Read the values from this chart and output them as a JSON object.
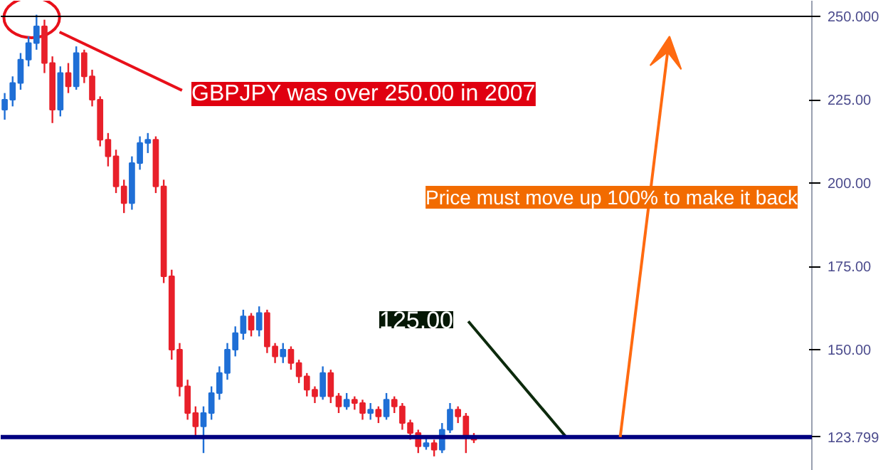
{
  "chart_data": {
    "type": "candlestick",
    "categories": [
      null,
      null,
      null,
      null,
      null,
      null,
      null,
      null,
      null,
      null,
      null,
      null,
      null,
      null,
      null,
      null,
      null,
      null,
      null,
      null,
      null,
      null,
      null,
      null,
      null,
      null,
      null,
      null,
      null,
      null,
      null,
      null,
      null,
      null,
      null,
      null,
      null,
      null,
      null,
      null,
      null,
      null,
      null,
      null,
      null,
      null,
      null,
      null,
      null,
      null,
      null,
      null,
      null,
      null,
      null,
      null,
      null,
      null,
      null,
      null,
      null,
      null,
      null,
      null,
      null,
      null,
      null,
      null,
      null,
      null,
      null,
      null,
      null,
      null,
      null,
      null,
      null,
      null,
      null,
      null,
      null,
      null,
      null,
      null,
      null,
      null,
      null,
      null,
      null,
      null,
      null,
      null,
      null,
      null,
      null,
      null,
      null,
      null,
      null,
      null,
      null,
      null
    ],
    "ohlc": [
      [
        222,
        227,
        219,
        225
      ],
      [
        225,
        232,
        223,
        230
      ],
      [
        230,
        239,
        228,
        237
      ],
      [
        237,
        244,
        235,
        242
      ],
      [
        242,
        250.5,
        240,
        247
      ],
      [
        247,
        249,
        233,
        236
      ],
      [
        236,
        238,
        218,
        222
      ],
      [
        222,
        235,
        220,
        233
      ],
      [
        233,
        236,
        227,
        229
      ],
      [
        229,
        241,
        228,
        239
      ],
      [
        239,
        240,
        230,
        232
      ],
      [
        232,
        234,
        223,
        225
      ],
      [
        225,
        226,
        211,
        213
      ],
      [
        213,
        215,
        205,
        208
      ],
      [
        208,
        210,
        197,
        199
      ],
      [
        199,
        201,
        191,
        194
      ],
      [
        194,
        208,
        192,
        206
      ],
      [
        206,
        214,
        204,
        212
      ],
      [
        212,
        215,
        209,
        213
      ],
      [
        213,
        214,
        197,
        199
      ],
      [
        199,
        201,
        170,
        172
      ],
      [
        172,
        174,
        147,
        150
      ],
      [
        150,
        152,
        136,
        139
      ],
      [
        139,
        141,
        129,
        131
      ],
      [
        131,
        133,
        124,
        127
      ],
      [
        127,
        133,
        119,
        131
      ],
      [
        131,
        139,
        129,
        137
      ],
      [
        137,
        145,
        135,
        143
      ],
      [
        143,
        152,
        141,
        150
      ],
      [
        150,
        157,
        148,
        155
      ],
      [
        155,
        162,
        153,
        160
      ],
      [
        160,
        161,
        154,
        156
      ],
      [
        156,
        163,
        154,
        161
      ],
      [
        161,
        162,
        149,
        151
      ],
      [
        151,
        152,
        146,
        148
      ],
      [
        148,
        152,
        146,
        150
      ],
      [
        150,
        151,
        144,
        146
      ],
      [
        146,
        147,
        140,
        142
      ],
      [
        142,
        143,
        136,
        138
      ],
      [
        138,
        139,
        134,
        136
      ],
      [
        136,
        145,
        135,
        143
      ],
      [
        143,
        144,
        134,
        136
      ],
      [
        136,
        137,
        131,
        133
      ],
      [
        133,
        137,
        132,
        135
      ],
      [
        135,
        136,
        132,
        134
      ],
      [
        134,
        135,
        129,
        131
      ],
      [
        131,
        134,
        129,
        132
      ],
      [
        132,
        133,
        128,
        130
      ],
      [
        130,
        137,
        129,
        135
      ],
      [
        135,
        136,
        131,
        133
      ],
      [
        133,
        134,
        126,
        128
      ],
      [
        128,
        129,
        123,
        125
      ],
      [
        125,
        126,
        119,
        121
      ],
      [
        121,
        124,
        120,
        122
      ],
      [
        122,
        123,
        118,
        120
      ],
      [
        120,
        128,
        119,
        126
      ],
      [
        126,
        134,
        125,
        132
      ],
      [
        132,
        133,
        128,
        130
      ],
      [
        130,
        131,
        119,
        124
      ],
      [
        124,
        125,
        122,
        123
      ],
      null,
      null,
      null,
      null,
      null,
      null,
      null,
      null,
      null,
      null,
      null,
      null,
      null,
      null,
      null,
      null,
      null,
      null,
      null,
      null,
      null,
      null,
      null,
      null,
      null,
      null,
      null,
      null,
      null,
      null,
      null,
      null,
      null,
      null,
      null,
      null,
      null,
      null,
      null,
      null,
      null,
      null
    ],
    "ylim": [
      113.7,
      254.7
    ],
    "yticks": [
      {
        "value": 150,
        "label": "150.00"
      },
      {
        "value": 175,
        "label": "175.00"
      },
      {
        "value": 200,
        "label": "200.00"
      },
      {
        "value": 225,
        "label": "225.00"
      }
    ],
    "tick_labels": "y",
    "grid": false,
    "ref_lines": [
      {
        "axis": "y",
        "value": 250,
        "label": "250.000",
        "color": "#000000"
      },
      {
        "axis": "y",
        "value": 123.799,
        "label": "123.799",
        "color": "#000080"
      }
    ],
    "annotations": [
      "GBPJPY was over 250.00 in 2007",
      "125.00",
      "Price must move up 100% to make it back"
    ]
  }
}
